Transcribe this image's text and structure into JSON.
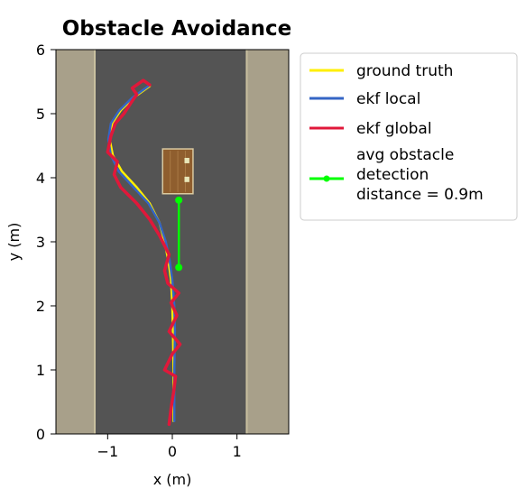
{
  "chart_data": {
    "type": "line",
    "title": "Obstacle Avoidance",
    "xlabel": "x (m)",
    "ylabel": "y (m)",
    "xlim": [
      -1.8,
      1.8
    ],
    "ylim": [
      0,
      6
    ],
    "x_ticks": [
      -1,
      0,
      1
    ],
    "x_tick_labels": [
      "−1",
      "0",
      "1"
    ],
    "y_ticks": [
      0,
      1,
      2,
      3,
      4,
      5,
      6
    ],
    "y_tick_labels": [
      "0",
      "1",
      "2",
      "3",
      "4",
      "5",
      "6"
    ],
    "grid": false,
    "legend_position": "outside-right-top",
    "background_image": "overhead road with dark asphalt lane, light gravel shoulders on both sides, and a brown box obstacle",
    "road": {
      "asphalt_x": [
        -1.2,
        1.15
      ],
      "asphalt_color": "#545454",
      "shoulder_color": "#a8a08a",
      "edge_line_color": "#c9c0a0"
    },
    "obstacle": {
      "x": [
        -0.15,
        0.32
      ],
      "y": [
        3.75,
        4.45
      ],
      "color": "#8f5e2e"
    },
    "series": [
      {
        "name": "ground truth",
        "color": "#ffef00",
        "x": [
          0.02,
          0.02,
          0.01,
          0.0,
          -0.02,
          -0.06,
          -0.12,
          -0.2,
          -0.35,
          -0.55,
          -0.78,
          -0.92,
          -0.97,
          -0.93,
          -0.8,
          -0.6,
          -0.35
        ],
        "y": [
          0.2,
          1.0,
          1.6,
          2.0,
          2.4,
          2.7,
          3.0,
          3.3,
          3.6,
          3.85,
          4.1,
          4.35,
          4.6,
          4.85,
          5.05,
          5.25,
          5.43
        ]
      },
      {
        "name": "ekf local",
        "color": "#3465c5",
        "x": [
          0.03,
          0.03,
          0.04,
          0.03,
          0.0,
          -0.04,
          -0.1,
          -0.2,
          -0.37,
          -0.6,
          -0.83,
          -0.95,
          -0.99,
          -0.95,
          -0.82,
          -0.62,
          -0.37
        ],
        "y": [
          0.2,
          1.0,
          1.6,
          2.0,
          2.4,
          2.7,
          3.0,
          3.3,
          3.6,
          3.85,
          4.1,
          4.35,
          4.6,
          4.85,
          5.05,
          5.25,
          5.43
        ]
      },
      {
        "name": "ekf global",
        "color": "#e0183a",
        "x": [
          -0.05,
          -0.02,
          0.02,
          0.05,
          -0.12,
          0.0,
          0.12,
          -0.05,
          0.07,
          -0.02,
          0.1,
          -0.07,
          -0.12,
          -0.05,
          -0.2,
          -0.35,
          -0.55,
          -0.8,
          -0.9,
          -0.85,
          -1.0,
          -0.95,
          -0.88,
          -0.75,
          -0.62,
          -0.55,
          -0.62,
          -0.45,
          -0.35
        ],
        "y": [
          0.15,
          0.4,
          0.65,
          0.9,
          1.0,
          1.25,
          1.4,
          1.6,
          1.85,
          2.05,
          2.2,
          2.35,
          2.55,
          2.8,
          3.1,
          3.35,
          3.6,
          3.85,
          4.05,
          4.25,
          4.4,
          4.65,
          4.85,
          5.0,
          5.2,
          5.3,
          5.4,
          5.52,
          5.45
        ]
      },
      {
        "name": "avg obstacle detection distance = 0.9m",
        "legend_lines": [
          "avg obstacle",
          "detection",
          "distance = 0.9m"
        ],
        "color": "#00ff00",
        "marker": "circle",
        "x": [
          0.1,
          0.1
        ],
        "y": [
          2.6,
          3.65
        ]
      }
    ]
  }
}
